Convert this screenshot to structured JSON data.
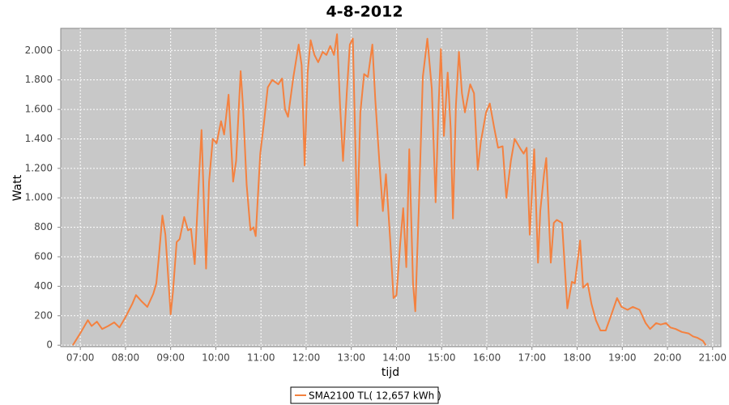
{
  "chart_data": {
    "type": "line",
    "title": "4-8-2012",
    "x_label": "tijd",
    "y_label": "Watt",
    "x": [
      "06:50",
      "07:01",
      "07:10",
      "07:15",
      "07:22",
      "07:29",
      "07:37",
      "07:45",
      "07:52",
      "08:00",
      "08:09",
      "08:14",
      "08:21",
      "08:29",
      "08:37",
      "08:41",
      "08:44",
      "08:49",
      "08:53",
      "09:00",
      "09:03",
      "09:08",
      "09:12",
      "09:18",
      "09:23",
      "09:27",
      "09:32",
      "09:37",
      "09:41",
      "09:47",
      "09:51",
      "09:56",
      "10:01",
      "10:07",
      "10:11",
      "10:17",
      "10:23",
      "10:27",
      "10:33",
      "10:36",
      "10:41",
      "10:46",
      "10:50",
      "10:53",
      "10:59",
      "11:04",
      "11:09",
      "11:15",
      "11:23",
      "11:28",
      "11:32",
      "11:36",
      "11:43",
      "11:50",
      "11:54",
      "11:58",
      "12:02",
      "12:06",
      "12:11",
      "12:16",
      "12:22",
      "12:27",
      "12:32",
      "12:37",
      "12:41",
      "12:45",
      "12:49",
      "12:54",
      "12:58",
      "13:02",
      "13:08",
      "13:12",
      "13:17",
      "13:22",
      "13:28",
      "13:32",
      "13:38",
      "13:42",
      "13:46",
      "13:52",
      "13:56",
      "14:00",
      "14:05",
      "14:09",
      "14:13",
      "14:17",
      "14:22",
      "14:25",
      "14:30",
      "14:35",
      "14:41",
      "14:47",
      "14:52",
      "14:56",
      "14:59",
      "15:03",
      "15:08",
      "15:12",
      "15:15",
      "15:19",
      "15:23",
      "15:27",
      "15:31",
      "15:38",
      "15:43",
      "15:48",
      "15:52",
      "15:59",
      "16:04",
      "16:10",
      "16:15",
      "16:21",
      "16:26",
      "16:32",
      "16:37",
      "16:45",
      "16:49",
      "16:53",
      "16:57",
      "17:03",
      "17:08",
      "17:11",
      "17:16",
      "17:19",
      "17:25",
      "17:29",
      "17:33",
      "17:40",
      "17:47",
      "17:53",
      "17:57",
      "18:04",
      "18:08",
      "18:14",
      "18:19",
      "18:25",
      "18:31",
      "18:38",
      "18:45",
      "18:53",
      "18:59",
      "19:07",
      "19:14",
      "19:23",
      "19:31",
      "19:37",
      "19:45",
      "19:51",
      "19:58",
      "20:04",
      "20:11",
      "20:19",
      "20:28",
      "20:34",
      "20:40",
      "20:47",
      "20:51"
    ],
    "series": [
      {
        "name": "SMA2100 TL( 12,657 kWh )",
        "color": "#f4813f",
        "values": [
          0,
          90,
          170,
          130,
          160,
          110,
          130,
          155,
          120,
          190,
          280,
          340,
          300,
          260,
          350,
          420,
          580,
          880,
          750,
          210,
          360,
          700,
          720,
          870,
          780,
          790,
          550,
          1070,
          1460,
          520,
          1110,
          1400,
          1370,
          1520,
          1430,
          1700,
          1110,
          1250,
          1860,
          1630,
          1090,
          780,
          800,
          740,
          1300,
          1510,
          1750,
          1800,
          1770,
          1810,
          1600,
          1550,
          1820,
          2040,
          1900,
          1220,
          1850,
          2070,
          1970,
          1920,
          1990,
          1970,
          2030,
          1970,
          2110,
          1630,
          1250,
          1710,
          2040,
          2080,
          810,
          1580,
          1840,
          1820,
          2040,
          1660,
          1190,
          910,
          1160,
          690,
          320,
          340,
          690,
          930,
          530,
          1330,
          420,
          230,
          970,
          1820,
          2080,
          1740,
          970,
          1630,
          2010,
          1420,
          1850,
          1470,
          860,
          1630,
          1990,
          1710,
          1580,
          1770,
          1710,
          1190,
          1380,
          1580,
          1640,
          1470,
          1340,
          1350,
          1000,
          1250,
          1400,
          1330,
          1300,
          1340,
          750,
          1330,
          560,
          910,
          1160,
          1270,
          560,
          830,
          850,
          830,
          250,
          430,
          420,
          710,
          390,
          420,
          280,
          170,
          100,
          100,
          200,
          320,
          260,
          240,
          260,
          240,
          150,
          110,
          150,
          140,
          150,
          120,
          110,
          90,
          80,
          60,
          50,
          30,
          0
        ]
      }
    ],
    "xlim": [
      "06:34",
      "21:11"
    ],
    "xticks": [
      "07:00",
      "08:00",
      "09:00",
      "10:00",
      "11:00",
      "12:00",
      "13:00",
      "14:00",
      "15:00",
      "16:00",
      "17:00",
      "18:00",
      "19:00",
      "20:00",
      "21:00"
    ],
    "ylim": [
      -10,
      2150
    ],
    "yticks": [
      0,
      200,
      400,
      600,
      800,
      {
        "value": 1000,
        "label": "1.000"
      },
      {
        "value": 1200,
        "label": "1.200"
      },
      {
        "value": 1400,
        "label": "1.400"
      },
      {
        "value": 1600,
        "label": "1.600"
      },
      {
        "value": 1800,
        "label": "1.800"
      },
      {
        "value": 2000,
        "label": "2.000"
      }
    ],
    "grid": true
  }
}
